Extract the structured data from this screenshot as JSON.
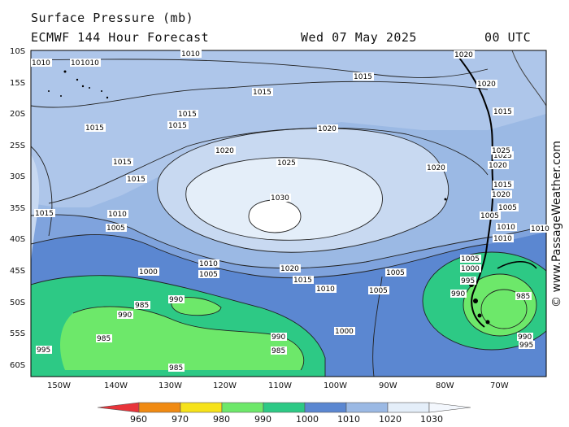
{
  "header": {
    "title": "Surface Pressure (mb)",
    "model": "ECMWF 144 Hour Forecast",
    "date": "Wed 07 May 2025",
    "time": "00 UTC"
  },
  "credit": "© www.PassageWeather.com",
  "lat_labels": [
    "10S",
    "15S",
    "20S",
    "25S",
    "30S",
    "35S",
    "40S",
    "45S",
    "50S",
    "55S",
    "60S"
  ],
  "lon_labels": [
    "150W",
    "140W",
    "130W",
    "120W",
    "110W",
    "100W",
    "90W",
    "80W",
    "70W"
  ],
  "legend": {
    "values": [
      "960",
      "970",
      "980",
      "990",
      "1000",
      "1010",
      "1020",
      "1030"
    ],
    "colors": [
      "#e8343a",
      "#f08a12",
      "#f6e21a",
      "#6de86a",
      "#2dc985",
      "#5b87d1",
      "#9bb9e4",
      "#e4eef9"
    ]
  },
  "contour_labels": [
    {
      "t": "1010"
    },
    {
      "t": "1010"
    },
    {
      "t": "1010"
    },
    {
      "t": "1010"
    },
    {
      "t": "1015"
    },
    {
      "t": "1015"
    },
    {
      "t": "1015"
    },
    {
      "t": "1015"
    },
    {
      "t": "1015"
    },
    {
      "t": "1020"
    },
    {
      "t": "1020"
    },
    {
      "t": "1025"
    },
    {
      "t": "1030"
    },
    {
      "t": "1020"
    },
    {
      "t": "1015"
    },
    {
      "t": "1015"
    },
    {
      "t": "1015"
    },
    {
      "t": "1010"
    },
    {
      "t": "1005"
    },
    {
      "t": "1010"
    },
    {
      "t": "1005"
    },
    {
      "t": "1020"
    },
    {
      "t": "1015"
    },
    {
      "t": "1010"
    },
    {
      "t": "1000"
    },
    {
      "t": "990"
    },
    {
      "t": "985"
    },
    {
      "t": "990"
    },
    {
      "t": "985"
    },
    {
      "t": "985"
    },
    {
      "t": "990"
    },
    {
      "t": "985"
    },
    {
      "t": "995"
    },
    {
      "t": "1000"
    },
    {
      "t": "1005"
    },
    {
      "t": "1005"
    },
    {
      "t": "1005"
    },
    {
      "t": "1000"
    },
    {
      "t": "995"
    },
    {
      "t": "990"
    },
    {
      "t": "985"
    },
    {
      "t": "990"
    },
    {
      "t": "995"
    },
    {
      "t": "1020"
    },
    {
      "t": "1015"
    },
    {
      "t": "1025"
    },
    {
      "t": "1020"
    },
    {
      "t": "1025"
    },
    {
      "t": "1015"
    },
    {
      "t": "1020"
    },
    {
      "t": "1020"
    },
    {
      "t": "1010"
    },
    {
      "t": "1005"
    },
    {
      "t": "1010"
    },
    {
      "t": "1010"
    },
    {
      "t": "1005"
    }
  ]
}
